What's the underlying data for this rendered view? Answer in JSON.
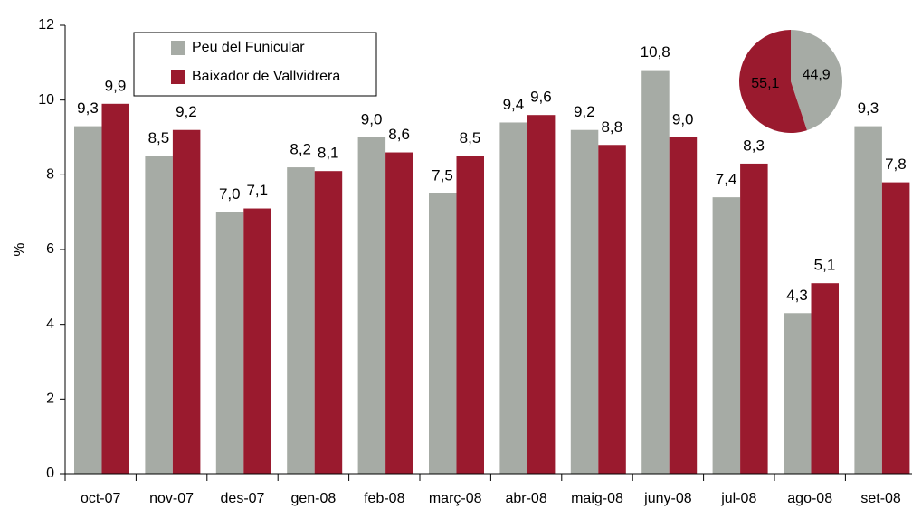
{
  "chart_data": [
    {
      "type": "bar",
      "ylabel": "%",
      "categories": [
        "oct-07",
        "nov-07",
        "des-07",
        "gen-08",
        "feb-08",
        "març-08",
        "abr-08",
        "maig-08",
        "juny-08",
        "jul-08",
        "ago-08",
        "set-08"
      ],
      "series": [
        {
          "name": "Peu del Funicular",
          "color": "#a6aba5",
          "values": [
            9.3,
            8.5,
            7.0,
            8.2,
            9.0,
            7.5,
            9.4,
            9.2,
            10.8,
            7.4,
            4.3,
            9.3
          ],
          "value_labels": [
            "9,3",
            "8,5",
            "7,0",
            "8,2",
            "9,0",
            "7,5",
            "9,4",
            "9,2",
            "10,8",
            "7,4",
            "4,3",
            "9,3"
          ]
        },
        {
          "name": "Baixador de Vallvidrera",
          "color": "#9a1a2e",
          "values": [
            9.9,
            9.2,
            7.1,
            8.1,
            8.6,
            8.5,
            9.6,
            8.8,
            9.0,
            8.3,
            5.1,
            7.8
          ],
          "value_labels": [
            "9,9",
            "9,2",
            "7,1",
            "8,1",
            "8,6",
            "8,5",
            "9,6",
            "8,8",
            "9,0",
            "8,3",
            "5,1",
            "7,8"
          ]
        }
      ],
      "ylim": [
        0,
        12
      ],
      "yticks": [
        0,
        2,
        4,
        6,
        8,
        10,
        12
      ],
      "legend": "upper left"
    },
    {
      "type": "pie",
      "values": [
        44.9,
        55.1
      ],
      "value_labels": [
        "44,9",
        "55,1"
      ],
      "colors": [
        "#a6aba5",
        "#9a1a2e"
      ]
    }
  ]
}
